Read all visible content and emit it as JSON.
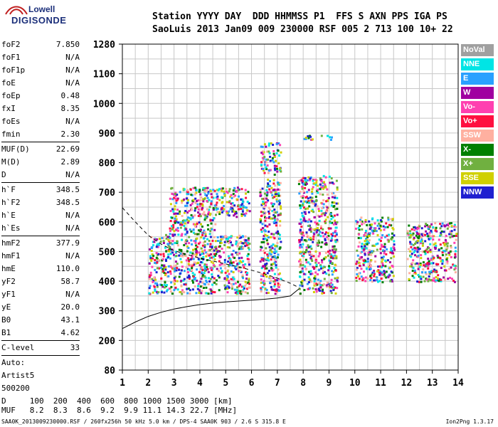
{
  "logo": {
    "line1": "Lowell",
    "line2": "DIGISONDE"
  },
  "header": {
    "line1": "Station YYYY DAY  DDD HHMMSS P1  FFS S AXN PPS IGA PS",
    "line2": "SaoLuis 2013 Jan09 009 230000 RSF 005 2 713 100 10+ 22"
  },
  "params": [
    {
      "label": "foF2",
      "value": "7.850"
    },
    {
      "label": "foF1",
      "value": "N/A"
    },
    {
      "label": "foF1p",
      "value": "N/A"
    },
    {
      "label": "foE",
      "value": "N/A"
    },
    {
      "label": "foEp",
      "value": "0.48"
    },
    {
      "label": "fxI",
      "value": "8.35"
    },
    {
      "label": "foEs",
      "value": "N/A"
    },
    {
      "label": "fmin",
      "value": "2.30"
    },
    {
      "sep": true
    },
    {
      "label": "MUF(D)",
      "value": "22.69"
    },
    {
      "label": "M(D)",
      "value": "2.89"
    },
    {
      "label": "D",
      "value": "N/A"
    },
    {
      "sep": true
    },
    {
      "label": "h`F",
      "value": "348.5"
    },
    {
      "label": "h`F2",
      "value": "348.5"
    },
    {
      "label": "h`E",
      "value": "N/A"
    },
    {
      "label": "h`Es",
      "value": "N/A"
    },
    {
      "sep": true
    },
    {
      "label": "hmF2",
      "value": "377.9"
    },
    {
      "label": "hmF1",
      "value": "N/A"
    },
    {
      "label": "hmE",
      "value": "110.0"
    },
    {
      "label": "yF2",
      "value": "58.7"
    },
    {
      "label": "yF1",
      "value": "N/A"
    },
    {
      "label": "yE",
      "value": "20.0"
    },
    {
      "label": "B0",
      "value": "43.1"
    },
    {
      "label": "B1",
      "value": "4.62"
    },
    {
      "sep": true
    },
    {
      "label": "C-level",
      "value": "33"
    },
    {
      "sep": true
    },
    {
      "label": "Auto:",
      "value": ""
    },
    {
      "label": "Artist5",
      "value": ""
    },
    {
      "label": "500200",
      "value": ""
    }
  ],
  "legend": [
    {
      "label": "NoVal",
      "color": "#a0a0a0"
    },
    {
      "label": "NNE",
      "color": "#00e5e5"
    },
    {
      "label": "E",
      "color": "#2aa0ff"
    },
    {
      "label": "W",
      "color": "#a000a0"
    },
    {
      "label": "Vo-",
      "color": "#ff40b0"
    },
    {
      "label": "Vo+",
      "color": "#ff1040"
    },
    {
      "label": "SSW",
      "color": "#ffb0a0"
    },
    {
      "label": "X-",
      "color": "#008000"
    },
    {
      "label": "X+",
      "color": "#70b040"
    },
    {
      "label": "SSE",
      "color": "#d0d000"
    },
    {
      "label": "NNW",
      "color": "#2020d0"
    }
  ],
  "footer": {
    "line1": "D     100  200  400  600  800 1000 1500 3000 [km]",
    "line2": "MUF   8.2  8.3  8.6  9.2  9.9 11.1 14.3 22.7 [MHz]",
    "line3": "SAA0K_2013009230000.RSF / 260fx256h 50 kHz 5.0 km / DPS-4 SAA0K 903 / 2.6 S 315.8 E",
    "version": "Ion2Png 1.3.17"
  },
  "chart_data": {
    "type": "scatter",
    "xlim": [
      1,
      14
    ],
    "x_ticks": [
      1,
      2,
      3,
      4,
      5,
      6,
      7,
      8,
      9,
      10,
      11,
      12,
      13,
      14
    ],
    "y_ticks": [
      80,
      200,
      300,
      400,
      500,
      600,
      700,
      800,
      900,
      1000,
      1100,
      1280
    ],
    "ylim": [
      80,
      1280
    ],
    "grid": true,
    "legend_position": "right",
    "series": [
      {
        "name": "profile",
        "style": "solid",
        "x": [
          1.0,
          1.5,
          2.0,
          2.5,
          3.0,
          3.5,
          4.0,
          4.5,
          5.0,
          5.5,
          6.0,
          6.5,
          7.0,
          7.5,
          7.85
        ],
        "y": [
          240,
          262,
          281,
          295,
          306,
          314,
          321,
          326,
          330,
          333,
          336,
          339,
          343,
          350,
          375
        ]
      },
      {
        "name": "muf",
        "style": "dashed",
        "x": [
          1.0,
          1.5,
          2.0,
          2.5,
          3.0,
          3.5,
          4.0,
          4.5,
          5.0,
          5.5,
          6.0,
          6.5,
          7.0,
          7.5,
          7.85
        ],
        "y": [
          648,
          600,
          555,
          525,
          503,
          490,
          478,
          468,
          458,
          448,
          437,
          425,
          410,
          393,
          378
        ]
      },
      {
        "name": "echoes",
        "style": "points",
        "clusters": [
          {
            "x": [
              2.0,
              4.6
            ],
            "y": [
              360,
              560
            ]
          },
          {
            "x": [
              2.8,
              4.6
            ],
            "y": [
              560,
              720
            ]
          },
          {
            "x": [
              4.6,
              5.9
            ],
            "y": [
              360,
              560
            ]
          },
          {
            "x": [
              4.6,
              5.9
            ],
            "y": [
              620,
              720
            ]
          },
          {
            "x": [
              6.3,
              7.1
            ],
            "y": [
              360,
              870
            ]
          },
          {
            "x": [
              7.8,
              9.3
            ],
            "y": [
              360,
              760
            ]
          },
          {
            "x": [
              8.0,
              9.1
            ],
            "y": [
              880,
              895
            ]
          },
          {
            "x": [
              10.0,
              11.5
            ],
            "y": [
              400,
              620
            ]
          },
          {
            "x": [
              12.0,
              13.9
            ],
            "y": [
              400,
              600
            ]
          }
        ]
      }
    ]
  }
}
